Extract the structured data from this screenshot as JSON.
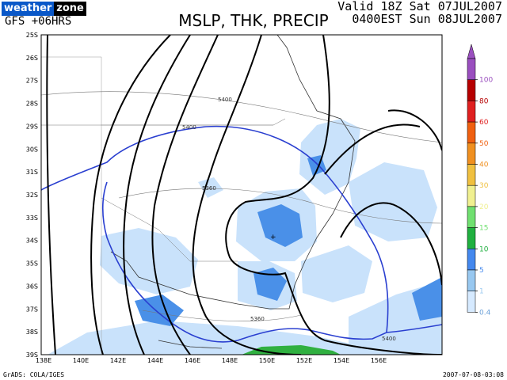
{
  "header": {
    "logo_part1": "weather",
    "logo_part2": "zone",
    "run": "GFS +06HRS",
    "title": "MSLP, THK, PRECIP",
    "valid_line1": "Valid 18Z Sat 07JUL2007",
    "valid_line2": "0400EST Sun 08JUL2007"
  },
  "map": {
    "lat_labels": [
      "25S",
      "26S",
      "27S",
      "28S",
      "29S",
      "30S",
      "31S",
      "32S",
      "33S",
      "34S",
      "35S",
      "36S",
      "37S",
      "38S",
      "39S"
    ],
    "lon_labels": [
      "138E",
      "140E",
      "142E",
      "144E",
      "146E",
      "148E",
      "150E",
      "152E",
      "154E",
      "156E"
    ],
    "thickness_labels": [
      "5400",
      "5400",
      "5360",
      "5360",
      "5400"
    ]
  },
  "legend": {
    "levels": [
      "100",
      "80",
      "60",
      "50",
      "40",
      "30",
      "20",
      "15",
      "10",
      "5",
      "1",
      "0.4"
    ],
    "colors": [
      "#9a4fbf",
      "#b60000",
      "#e02020",
      "#f06010",
      "#f09020",
      "#f0c040",
      "#f0f090",
      "#70e070",
      "#20b040",
      "#4488ee",
      "#98c8f0",
      "#d6eaff"
    ]
  },
  "footer": {
    "source": "GrADS: COLA/IGES",
    "timestamp": "2007-07-08-03:08"
  }
}
